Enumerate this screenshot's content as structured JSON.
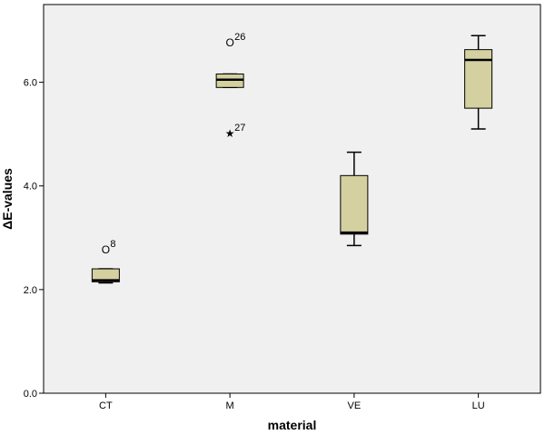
{
  "chart_data": {
    "type": "boxplot",
    "title": "",
    "xlabel": "material",
    "ylabel": "ΔE-values",
    "ylim": [
      0,
      7.5
    ],
    "yticks": [
      0.0,
      2.0,
      4.0,
      6.0
    ],
    "ytick_labels": [
      "0.0",
      "2.0",
      "4.0",
      "6.0"
    ],
    "grid": false,
    "categories": [
      "CT",
      "M",
      "VE",
      "LU"
    ],
    "boxes": [
      {
        "category": "CT",
        "whisker_low": 2.13,
        "q1": 2.15,
        "median": 2.18,
        "q3": 2.4,
        "whisker_high": 2.4,
        "outliers": [
          {
            "value": 2.77,
            "label": "8",
            "marker": "circle"
          }
        ]
      },
      {
        "category": "M",
        "whisker_low": 5.9,
        "q1": 5.9,
        "median": 6.05,
        "q3": 6.16,
        "whisker_high": 6.16,
        "outliers": [
          {
            "value": 6.76,
            "label": "26",
            "marker": "circle"
          },
          {
            "value": 5.01,
            "label": "27",
            "marker": "star"
          }
        ]
      },
      {
        "category": "VE",
        "whisker_low": 2.85,
        "q1": 3.07,
        "median": 3.1,
        "q3": 4.2,
        "whisker_high": 4.65,
        "outliers": []
      },
      {
        "category": "LU",
        "whisker_low": 5.1,
        "q1": 5.5,
        "median": 6.43,
        "q3": 6.63,
        "whisker_high": 6.9,
        "outliers": []
      }
    ]
  },
  "colors": {
    "plot_background": "#f0f0f0",
    "box_fill": "#d4d0a0",
    "stroke": "#000000",
    "page_background": "#ffffff"
  },
  "marker_glyphs": {
    "circle": "O",
    "star": "★"
  }
}
